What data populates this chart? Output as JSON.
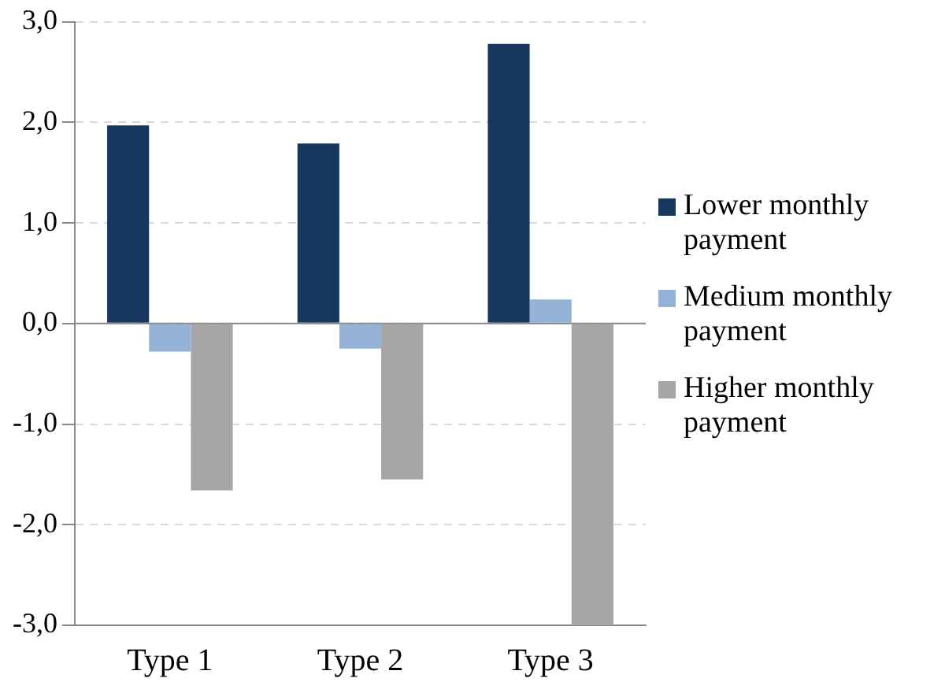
{
  "chart_data": {
    "type": "bar",
    "categories": [
      "Type 1",
      "Type 2",
      "Type 3"
    ],
    "series": [
      {
        "name": "Lower monthly payment",
        "color": "#17375e",
        "values": [
          1.97,
          1.79,
          2.78
        ]
      },
      {
        "name": "Medium monthly payment",
        "color": "#95b3d7",
        "values": [
          -0.28,
          -0.25,
          0.24
        ]
      },
      {
        "name": "Higher monthly payment",
        "color": "#a6a6a6",
        "values": [
          -1.66,
          -1.55,
          -3.0
        ]
      }
    ],
    "ylim": [
      -3.0,
      3.0
    ],
    "yticks": [
      {
        "value": -3,
        "label": "-3,0"
      },
      {
        "value": -2,
        "label": "-2,0"
      },
      {
        "value": -1,
        "label": "-1,0"
      },
      {
        "value": 0,
        "label": "0,0"
      },
      {
        "value": 1,
        "label": "1,0"
      },
      {
        "value": 2,
        "label": "2,0"
      },
      {
        "value": 3,
        "label": "3,0"
      }
    ],
    "grid": "y",
    "legend": "right"
  }
}
